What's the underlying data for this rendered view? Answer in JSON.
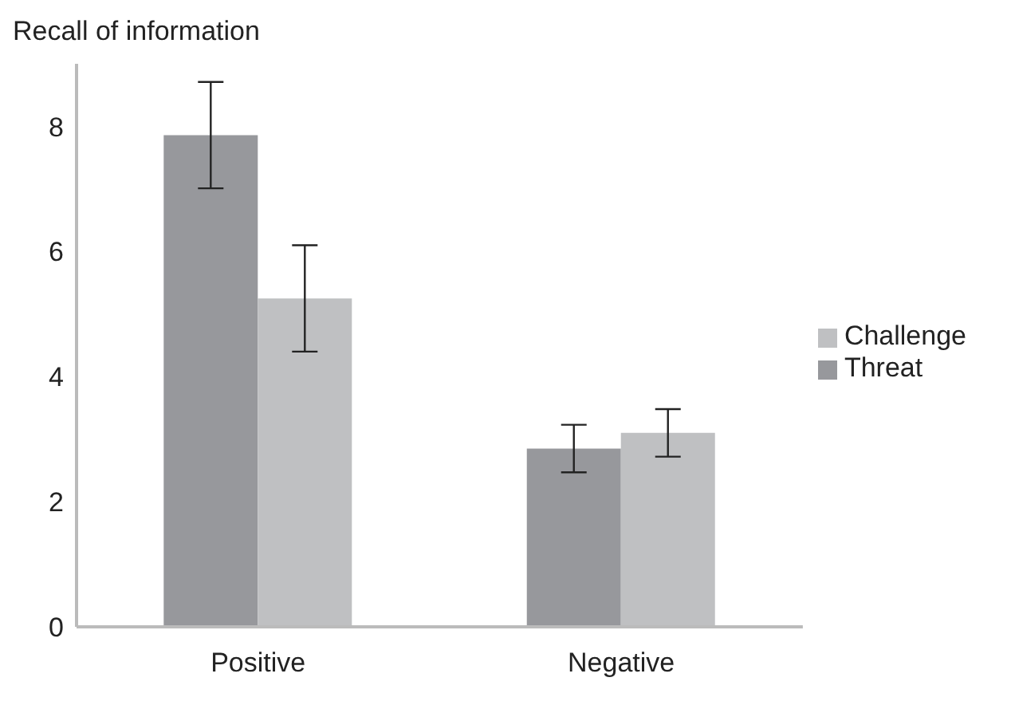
{
  "chart_data": {
    "type": "bar",
    "ylabel": "Recall of information",
    "categories": [
      "Positive",
      "Negative"
    ],
    "series": [
      {
        "name": "Threat",
        "color": "#97989c",
        "values": [
          7.86,
          2.85
        ],
        "errors": [
          0.85,
          0.38
        ]
      },
      {
        "name": "Challenge",
        "color": "#bfc0c2",
        "values": [
          5.25,
          3.1
        ],
        "errors": [
          0.85,
          0.38
        ]
      }
    ],
    "ylim": [
      0,
      9
    ],
    "yticks": [
      0,
      2,
      4,
      6,
      8
    ],
    "grid": false,
    "legend": "right"
  }
}
